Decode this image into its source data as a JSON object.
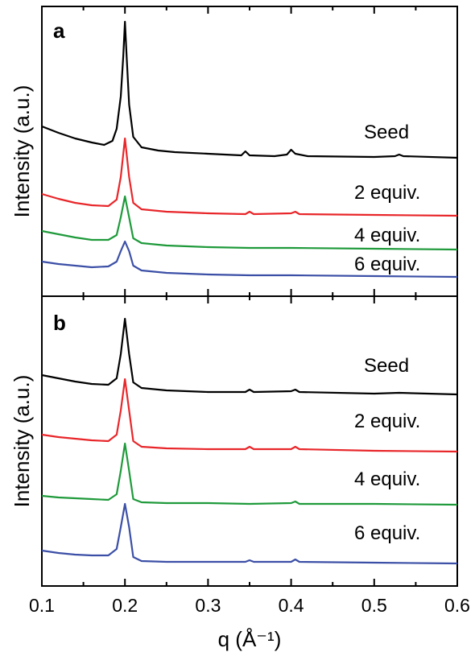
{
  "chart_data": [
    {
      "type": "line",
      "panel": "a",
      "xlim": [
        0.1,
        0.6
      ],
      "ylabel": "Intensity (a.u.)",
      "yticks": "none",
      "grid": false,
      "legend": "inline labels at right",
      "series": [
        {
          "name": "Seed",
          "color": "#000000",
          "baseline": 195,
          "points": [
            [
              0.1,
              157
            ],
            [
              0.12,
              165
            ],
            [
              0.14,
              172
            ],
            [
              0.16,
              177
            ],
            [
              0.175,
              180
            ],
            [
              0.185,
              175
            ],
            [
              0.19,
              160
            ],
            [
              0.195,
              120
            ],
            [
              0.198,
              70
            ],
            [
              0.2,
              27
            ],
            [
              0.202,
              70
            ],
            [
              0.205,
              130
            ],
            [
              0.21,
              170
            ],
            [
              0.22,
              183
            ],
            [
              0.24,
              187
            ],
            [
              0.26,
              189
            ],
            [
              0.3,
              191
            ],
            [
              0.34,
              193
            ],
            [
              0.345,
              188
            ],
            [
              0.35,
              193
            ],
            [
              0.38,
              194
            ],
            [
              0.395,
              192
            ],
            [
              0.4,
              186
            ],
            [
              0.405,
              191
            ],
            [
              0.42,
              194
            ],
            [
              0.5,
              195
            ],
            [
              0.525,
              194
            ],
            [
              0.53,
              192
            ],
            [
              0.535,
              194
            ],
            [
              0.6,
              196
            ]
          ]
        },
        {
          "name": "2 equiv.",
          "color": "#e8262a",
          "baseline": 268,
          "points": [
            [
              0.1,
              241
            ],
            [
              0.12,
              247
            ],
            [
              0.14,
              252
            ],
            [
              0.16,
              255
            ],
            [
              0.18,
              256
            ],
            [
              0.19,
              248
            ],
            [
              0.195,
              220
            ],
            [
              0.2,
              172
            ],
            [
              0.205,
              220
            ],
            [
              0.21,
              252
            ],
            [
              0.22,
              260
            ],
            [
              0.25,
              263
            ],
            [
              0.3,
              265
            ],
            [
              0.345,
              266
            ],
            [
              0.35,
              263
            ],
            [
              0.355,
              266
            ],
            [
              0.4,
              265
            ],
            [
              0.405,
              263
            ],
            [
              0.41,
              266
            ],
            [
              0.5,
              267
            ],
            [
              0.6,
              268
            ]
          ]
        },
        {
          "name": "4 equiv.",
          "color": "#1f9a3b",
          "baseline": 310,
          "points": [
            [
              0.1,
              287
            ],
            [
              0.12,
              291
            ],
            [
              0.14,
              295
            ],
            [
              0.16,
              298
            ],
            [
              0.18,
              298
            ],
            [
              0.19,
              292
            ],
            [
              0.195,
              270
            ],
            [
              0.2,
              244
            ],
            [
              0.205,
              270
            ],
            [
              0.21,
              296
            ],
            [
              0.22,
              302
            ],
            [
              0.25,
              305
            ],
            [
              0.3,
              307
            ],
            [
              0.35,
              308
            ],
            [
              0.4,
              308
            ],
            [
              0.5,
              309
            ],
            [
              0.6,
              310
            ]
          ]
        },
        {
          "name": "6 equiv.",
          "color": "#3b4fa6",
          "baseline": 343,
          "points": [
            [
              0.1,
              325
            ],
            [
              0.12,
              328
            ],
            [
              0.14,
              330
            ],
            [
              0.16,
              332
            ],
            [
              0.18,
              331
            ],
            [
              0.19,
              325
            ],
            [
              0.195,
              312
            ],
            [
              0.2,
              300
            ],
            [
              0.205,
              312
            ],
            [
              0.21,
              330
            ],
            [
              0.22,
              336
            ],
            [
              0.25,
              339
            ],
            [
              0.3,
              341
            ],
            [
              0.35,
              342
            ],
            [
              0.4,
              342
            ],
            [
              0.5,
              343
            ],
            [
              0.6,
              344
            ]
          ]
        }
      ]
    },
    {
      "type": "line",
      "panel": "b",
      "xlim": [
        0.1,
        0.6
      ],
      "xticks": [
        "0.1",
        "0.2",
        "0.3",
        "0.4",
        "0.5",
        "0.6"
      ],
      "xtick_values": [
        0.1,
        0.2,
        0.3,
        0.4,
        0.5,
        0.6
      ],
      "xlabel": "q (Å⁻¹)",
      "ylabel": "Intensity (a.u.)",
      "yticks": "none",
      "grid": false,
      "legend": "inline labels at right",
      "series": [
        {
          "name": "Seed",
          "color": "#000000",
          "baseline": 490,
          "points": [
            [
              0.1,
              466
            ],
            [
              0.12,
              470
            ],
            [
              0.14,
              474
            ],
            [
              0.16,
              477
            ],
            [
              0.18,
              478
            ],
            [
              0.19,
              470
            ],
            [
              0.195,
              440
            ],
            [
              0.2,
              396
            ],
            [
              0.205,
              440
            ],
            [
              0.21,
              475
            ],
            [
              0.22,
              482
            ],
            [
              0.25,
              485
            ],
            [
              0.3,
              487
            ],
            [
              0.345,
              487
            ],
            [
              0.35,
              484
            ],
            [
              0.355,
              487
            ],
            [
              0.4,
              486
            ],
            [
              0.405,
              484
            ],
            [
              0.41,
              487
            ],
            [
              0.5,
              489
            ],
            [
              0.53,
              488
            ],
            [
              0.6,
              490
            ]
          ]
        },
        {
          "name": "2 equiv.",
          "color": "#e8262a",
          "baseline": 561,
          "points": [
            [
              0.1,
              540
            ],
            [
              0.12,
              543
            ],
            [
              0.14,
              545
            ],
            [
              0.16,
              547
            ],
            [
              0.18,
              548
            ],
            [
              0.19,
              540
            ],
            [
              0.195,
              510
            ],
            [
              0.2,
              471
            ],
            [
              0.205,
              510
            ],
            [
              0.21,
              548
            ],
            [
              0.22,
              555
            ],
            [
              0.25,
              557
            ],
            [
              0.3,
              558
            ],
            [
              0.345,
              558
            ],
            [
              0.35,
              555
            ],
            [
              0.355,
              558
            ],
            [
              0.4,
              558
            ],
            [
              0.405,
              555
            ],
            [
              0.41,
              558
            ],
            [
              0.5,
              560
            ],
            [
              0.6,
              561
            ]
          ]
        },
        {
          "name": "4 equiv.",
          "color": "#1f9a3b",
          "baseline": 627,
          "points": [
            [
              0.1,
              616
            ],
            [
              0.12,
              618
            ],
            [
              0.14,
              619
            ],
            [
              0.16,
              620
            ],
            [
              0.18,
              621
            ],
            [
              0.19,
              614
            ],
            [
              0.195,
              585
            ],
            [
              0.2,
              551
            ],
            [
              0.205,
              585
            ],
            [
              0.21,
              620
            ],
            [
              0.22,
              624
            ],
            [
              0.25,
              625
            ],
            [
              0.3,
              625
            ],
            [
              0.35,
              626
            ],
            [
              0.4,
              625
            ],
            [
              0.405,
              623
            ],
            [
              0.41,
              626
            ],
            [
              0.5,
              626
            ],
            [
              0.6,
              627
            ]
          ]
        },
        {
          "name": "6 equiv.",
          "color": "#3b4fa6",
          "baseline": 700,
          "points": [
            [
              0.1,
              684
            ],
            [
              0.12,
              687
            ],
            [
              0.14,
              689
            ],
            [
              0.16,
              690
            ],
            [
              0.18,
              690
            ],
            [
              0.19,
              682
            ],
            [
              0.195,
              655
            ],
            [
              0.2,
              626
            ],
            [
              0.205,
              655
            ],
            [
              0.21,
              692
            ],
            [
              0.22,
              697
            ],
            [
              0.25,
              698
            ],
            [
              0.3,
              698
            ],
            [
              0.345,
              698
            ],
            [
              0.35,
              696
            ],
            [
              0.355,
              698
            ],
            [
              0.4,
              698
            ],
            [
              0.405,
              695
            ],
            [
              0.41,
              698
            ],
            [
              0.5,
              699
            ],
            [
              0.6,
              700
            ]
          ]
        }
      ]
    }
  ]
}
